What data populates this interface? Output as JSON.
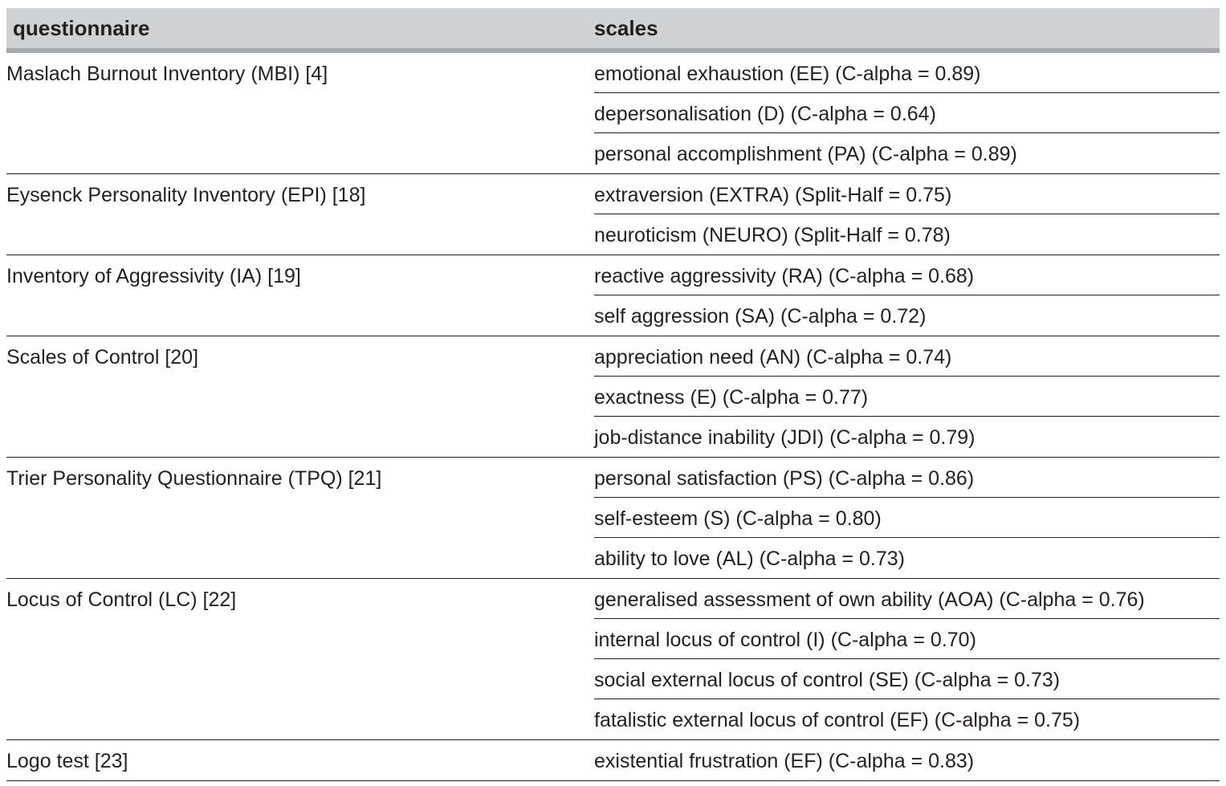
{
  "table": {
    "headers": {
      "questionnaire": "questionnaire",
      "scales": "scales"
    },
    "groups": [
      {
        "questionnaire": "Maslach Burnout Inventory (MBI) [4]",
        "scales": [
          "emotional exhaustion (EE) (C-alpha = 0.89)",
          "depersonalisation (D) (C-alpha = 0.64)",
          "personal accomplishment (PA) (C-alpha = 0.89)"
        ]
      },
      {
        "questionnaire": "Eysenck Personality Inventory (EPI) [18]",
        "scales": [
          "extraversion (EXTRA) (Split-Half = 0.75)",
          "neuroticism (NEURO) (Split-Half = 0.78)"
        ]
      },
      {
        "questionnaire": "Inventory of Aggressivity (IA) [19]",
        "scales": [
          "reactive aggressivity (RA) (C-alpha = 0.68)",
          "self aggression (SA) (C-alpha = 0.72)"
        ]
      },
      {
        "questionnaire": "Scales of Control [20]",
        "scales": [
          "appreciation need (AN) (C-alpha = 0.74)",
          "exactness (E) (C-alpha = 0.77)",
          "job-distance inability (JDI) (C-alpha = 0.79)"
        ]
      },
      {
        "questionnaire": "Trier Personality Questionnaire (TPQ) [21]",
        "scales": [
          "personal satisfaction (PS) (C-alpha = 0.86)",
          "self-esteem (S) (C-alpha = 0.80)",
          "ability to love (AL) (C-alpha = 0.73)"
        ]
      },
      {
        "questionnaire": "Locus of Control (LC) [22]",
        "scales": [
          "generalised assessment of own ability (AOA) (C-alpha = 0.76)",
          "internal locus of control (I) (C-alpha = 0.70)",
          "social external locus of control (SE) (C-alpha = 0.73)",
          "fatalistic external locus of control (EF) (C-alpha = 0.75)"
        ]
      },
      {
        "questionnaire": "Logo test [23]",
        "scales": [
          "existential frustration (EF) (C-alpha = 0.83)"
        ]
      }
    ]
  }
}
